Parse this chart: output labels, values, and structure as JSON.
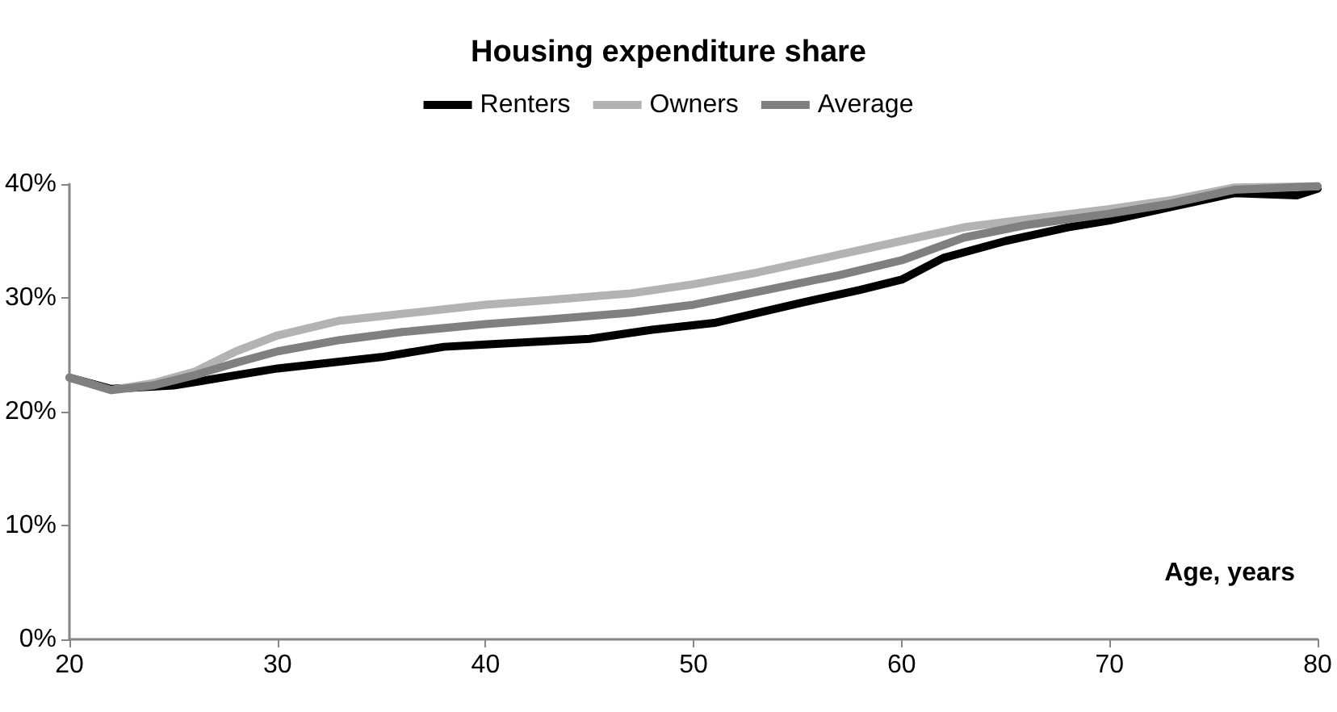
{
  "chart_data": {
    "type": "line",
    "title": "Housing expenditure share",
    "xlabel": "Age, years",
    "xlim": [
      20,
      80
    ],
    "xticks": [
      20,
      30,
      40,
      50,
      60,
      70,
      80
    ],
    "ylim": [
      0,
      40
    ],
    "yticks": [
      {
        "value": 0,
        "label": "0%"
      },
      {
        "value": 10,
        "label": "10%"
      },
      {
        "value": 20,
        "label": "20%"
      },
      {
        "value": 30,
        "label": "30%"
      },
      {
        "value": 40,
        "label": "40%"
      }
    ],
    "grid": false,
    "legend": "top",
    "marker": "none",
    "line_style": "solid",
    "series": [
      {
        "name": "Renters",
        "color": "#000000",
        "x": [
          20,
          22,
          25,
          30,
          35,
          38,
          40,
          45,
          48,
          51,
          55,
          58,
          60,
          62,
          65,
          68,
          70,
          73,
          76,
          79,
          80
        ],
        "values": [
          23,
          22,
          22.3,
          23.8,
          24.8,
          25.7,
          25.9,
          26.4,
          27.2,
          27.8,
          29.5,
          30.7,
          31.6,
          33.5,
          35,
          36.2,
          36.8,
          38,
          39.2,
          39,
          39.6
        ]
      },
      {
        "name": "Owners",
        "color": "#b3b3b3",
        "x": [
          20,
          22,
          24,
          26,
          28,
          30,
          33,
          36,
          40,
          43,
          47,
          50,
          53,
          57,
          60,
          63,
          66,
          70,
          73,
          76,
          80
        ],
        "values": [
          23,
          21.9,
          22.5,
          23.5,
          25.3,
          26.7,
          28,
          28.6,
          29.4,
          29.8,
          30.4,
          31.2,
          32.2,
          33.8,
          35,
          36.2,
          36.9,
          37.8,
          38.6,
          39.7,
          39.8
        ]
      },
      {
        "name": "Average",
        "color": "#808080",
        "x": [
          20,
          22,
          24,
          26,
          28,
          30,
          33,
          36,
          40,
          43,
          47,
          50,
          53,
          57,
          60,
          63,
          66,
          70,
          73,
          76,
          80
        ],
        "values": [
          23,
          21.9,
          22.3,
          23.2,
          24.3,
          25.3,
          26.3,
          27,
          27.7,
          28.1,
          28.7,
          29.4,
          30.5,
          32,
          33.3,
          35.3,
          36.4,
          37.4,
          38.3,
          39.5,
          39.8
        ]
      }
    ]
  }
}
